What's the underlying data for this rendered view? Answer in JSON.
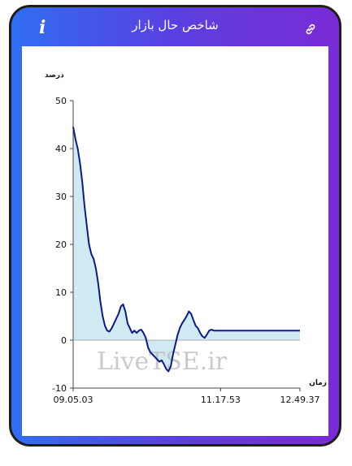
{
  "header": {
    "title": "شاخص حال بازار",
    "info_icon": "info-icon",
    "info_glyph": "i",
    "link_icon": "link-icon"
  },
  "colors": {
    "gradient_start": "#2f6ef2",
    "gradient_end": "#7a2ad6",
    "line": "#0a1a8c",
    "fill": "#cfeaf2"
  },
  "watermark": "LiveTSE.ir",
  "chart_data": {
    "type": "area",
    "ylabel": "درصد",
    "xlabel": "زمان",
    "ylim": [
      -10,
      50
    ],
    "yticks": [
      -10,
      0,
      10,
      20,
      30,
      40,
      50
    ],
    "xlim": [
      0,
      100
    ],
    "xtick_labels": [
      {
        "label": "09.05.03",
        "x": 0
      },
      {
        "label": "11.17.53",
        "x": 65
      },
      {
        "label": "12.49.37",
        "x": 100
      }
    ],
    "grid": false,
    "x": [
      0,
      1,
      2,
      3,
      4,
      5,
      6,
      7,
      8,
      9,
      10,
      11,
      12,
      13,
      14,
      15,
      16,
      17,
      18,
      19,
      20,
      21,
      22,
      23,
      24,
      25,
      26,
      27,
      28,
      29,
      30,
      31,
      32,
      33,
      34,
      35,
      36,
      37,
      38,
      39,
      40,
      41,
      42,
      43,
      44,
      45,
      46,
      47,
      48,
      49,
      50,
      51,
      52,
      53,
      54,
      55,
      56,
      57,
      58,
      59,
      60,
      61,
      62,
      63,
      64,
      65,
      66,
      67,
      68,
      69,
      70,
      71,
      72,
      73,
      74,
      75,
      76,
      77,
      78,
      79,
      80,
      81,
      82,
      83,
      84,
      85,
      86,
      87,
      88,
      89,
      90,
      91,
      92,
      93,
      94,
      95,
      96,
      97,
      98,
      99,
      100
    ],
    "y": [
      44.5,
      42,
      40,
      37,
      33,
      28,
      24,
      20,
      18,
      17,
      15,
      12,
      8,
      5,
      3,
      2,
      1.8,
      2.5,
      3.5,
      4.5,
      5.5,
      7,
      7.5,
      6,
      3.5,
      2.5,
      1.5,
      2,
      1.5,
      2,
      2.2,
      1.5,
      0.5,
      -1.5,
      -2.5,
      -3,
      -3.5,
      -4,
      -4.5,
      -4.2,
      -5,
      -6,
      -6.5,
      -5.5,
      -3,
      -1,
      1,
      2.5,
      3.5,
      4.2,
      5,
      6,
      5.5,
      4.2,
      3,
      2.5,
      1.5,
      0.8,
      0.5,
      1.2,
      2,
      2.2,
      2,
      2,
      2,
      2,
      2,
      2,
      2,
      2,
      2,
      2,
      2,
      2,
      2,
      2,
      2,
      2,
      2,
      2,
      2,
      2,
      2,
      2,
      2,
      2,
      2,
      2,
      2,
      2,
      2,
      2,
      2,
      2,
      2,
      2,
      2,
      2,
      2,
      2,
      2
    ]
  }
}
